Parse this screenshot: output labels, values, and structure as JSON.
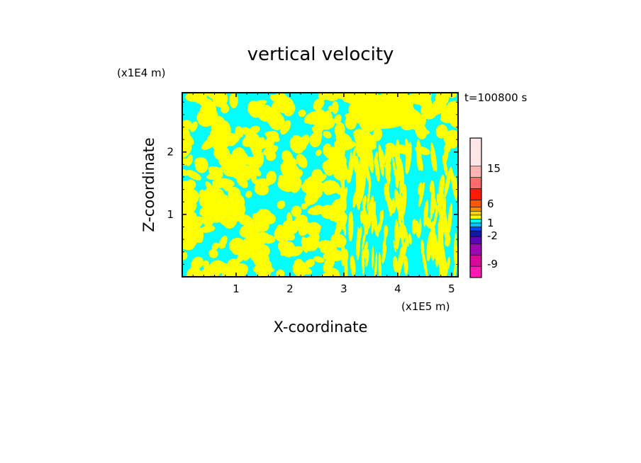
{
  "chart_data": {
    "type": "heatmap",
    "title": "vertical velocity",
    "xlabel": "X-coordinate",
    "ylabel": "Z-coordinate",
    "x_unit": "(x1E5 m)",
    "y_unit": "(x1E4 m)",
    "time_label": "t=100800 s",
    "xlim": [
      0,
      5.12
    ],
    "ylim": [
      0,
      2.95
    ],
    "xticks": [
      1,
      2,
      3,
      4,
      5
    ],
    "yticks": [
      1,
      2
    ],
    "xticklabels": [
      "1",
      "2",
      "3",
      "4",
      "5"
    ],
    "yticklabels": [
      "1",
      "2"
    ],
    "field_colors": {
      "positive": "#ffff00",
      "negative": "#00ffff"
    },
    "colorbar": {
      "labels": [
        "15",
        "6",
        "1",
        "-2",
        "-9"
      ],
      "levels": [
        -9,
        -2,
        1,
        6,
        15
      ],
      "colors": [
        "#ff1ab4",
        "#d8089a",
        "#9a0ab0",
        "#5a06b8",
        "#1418a8",
        "#004cff",
        "#00c8ff",
        "#00ffff",
        "#ffff00",
        "#ffd200",
        "#ff8c00",
        "#ff5a00",
        "#ff1a00",
        "#ff6a6a",
        "#ffb4b4",
        "#ffe6e6"
      ]
    }
  }
}
